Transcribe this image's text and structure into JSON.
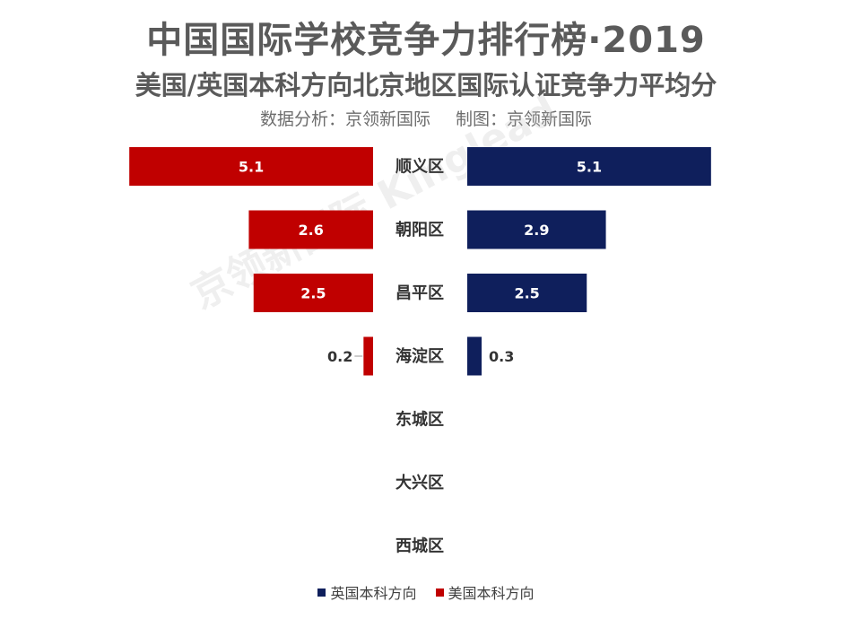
{
  "header": {
    "title": "中国国际学校竞争力排行榜·2019",
    "subtitle": "美国/英国本科方向北京地区国际认证竞争力平均分",
    "source": "数据分析：京领新国际",
    "credit": "制图：京领新国际",
    "watermark": "京领新国际 Kinglead"
  },
  "colors": {
    "uk": "#0f1f5c",
    "us": "#c00000"
  },
  "chart_data": {
    "type": "bar",
    "orientation": "horizontal-butterfly",
    "categories": [
      "顺义区",
      "朝阳区",
      "昌平区",
      "海淀区",
      "东城区",
      "大兴区",
      "西城区"
    ],
    "series": [
      {
        "name": "英国本科方向",
        "side": "right",
        "values": [
          5.1,
          2.9,
          2.5,
          0.3,
          null,
          null,
          null
        ]
      },
      {
        "name": "美国本科方向",
        "side": "left",
        "values": [
          5.1,
          2.6,
          2.5,
          0.2,
          null,
          null,
          null
        ]
      }
    ],
    "legend_position": "bottom",
    "grid": false
  },
  "legend": {
    "uk_label": "英国本科方向",
    "us_label": "美国本科方向"
  }
}
